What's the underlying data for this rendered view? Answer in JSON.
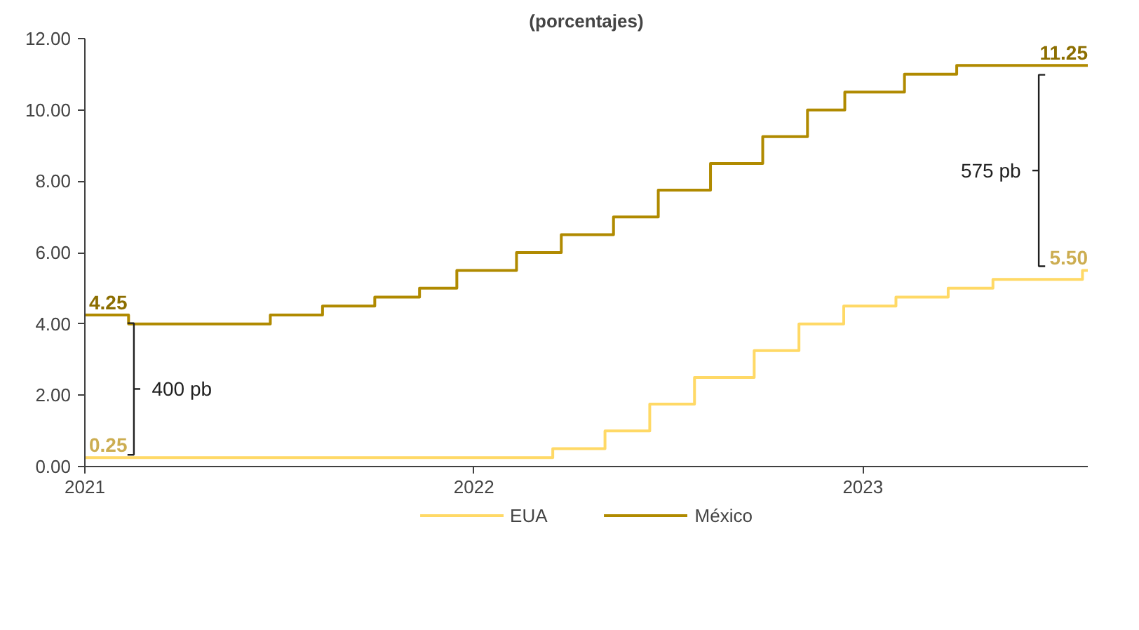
{
  "chart_data": {
    "type": "step",
    "title": "(porcentajes)",
    "xlim": [
      "2021-01-01",
      "2023-07-31"
    ],
    "xticks": [
      {
        "value": "2021-01-01",
        "label": "2021"
      },
      {
        "value": "2022-01-01",
        "label": "2022"
      },
      {
        "value": "2023-01-01",
        "label": "2023"
      }
    ],
    "ylim": [
      0,
      12
    ],
    "yticks": [
      {
        "value": 0,
        "label": "0.00"
      },
      {
        "value": 2,
        "label": "2.00"
      },
      {
        "value": 4,
        "label": "4.00"
      },
      {
        "value": 6,
        "label": "6.00"
      },
      {
        "value": 8,
        "label": "8.00"
      },
      {
        "value": 10,
        "label": "10.00"
      },
      {
        "value": 12,
        "label": "12.00"
      }
    ],
    "grid": false,
    "legend": "bottom",
    "marker": "none",
    "line_style": "solid",
    "series": [
      {
        "name": "EUA",
        "color": "#ffd966",
        "x": [
          "2021-01-01",
          "2022-03-16",
          "2022-05-04",
          "2022-06-15",
          "2022-07-27",
          "2022-09-21",
          "2022-11-02",
          "2022-12-14",
          "2023-02-01",
          "2023-03-22",
          "2023-05-03",
          "2023-07-26",
          "2023-07-31"
        ],
        "values": [
          0.25,
          0.5,
          1.0,
          1.75,
          2.5,
          3.25,
          4.0,
          4.5,
          4.75,
          5.0,
          5.25,
          5.5,
          5.5
        ],
        "value_labels": [
          "0.25",
          null,
          null,
          null,
          null,
          null,
          null,
          null,
          null,
          null,
          null,
          null,
          "5.50"
        ]
      },
      {
        "name": "México",
        "color": "#b08a00",
        "x": [
          "2021-01-01",
          "2021-02-11",
          "2021-06-24",
          "2021-08-12",
          "2021-09-30",
          "2021-11-11",
          "2021-12-16",
          "2022-02-10",
          "2022-03-24",
          "2022-05-12",
          "2022-06-23",
          "2022-08-11",
          "2022-09-29",
          "2022-11-10",
          "2022-12-15",
          "2023-02-09",
          "2023-03-30",
          "2023-07-31"
        ],
        "values": [
          4.25,
          4.0,
          4.25,
          4.5,
          4.75,
          5.0,
          5.5,
          6.0,
          6.5,
          7.0,
          7.75,
          8.5,
          9.25,
          10.0,
          10.5,
          11.0,
          11.25,
          11.25
        ],
        "value_labels": [
          "4.25",
          null,
          null,
          null,
          null,
          null,
          null,
          null,
          null,
          null,
          null,
          null,
          null,
          null,
          null,
          null,
          null,
          "11.25"
        ]
      }
    ],
    "annotations": [
      "400 pb",
      "575 pb"
    ]
  }
}
